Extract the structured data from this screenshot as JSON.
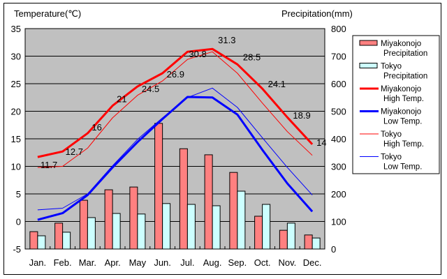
{
  "chart_data": {
    "type": "bar+line",
    "title": "",
    "ylabel_left": "Temperature(℃)",
    "ylabel_right": "Precipitation(mm)",
    "ylim_left": [
      -5,
      35
    ],
    "ylim_right": [
      0,
      800
    ],
    "yticks_left": [
      "35",
      "30",
      "25",
      "20",
      "15",
      "10",
      "5",
      "0",
      "-5"
    ],
    "yticks_right": [
      "800",
      "700",
      "600",
      "500",
      "400",
      "300",
      "200",
      "100",
      "0"
    ],
    "categories": [
      "Jan.",
      "Feb.",
      "Mar.",
      "Apr.",
      "May",
      "Jun.",
      "Jul.",
      "Aug.",
      "Sep.",
      "Oct.",
      "Nov.",
      "Dec."
    ],
    "grid": true,
    "legend_position": "right",
    "bar_series": [
      {
        "name": "Miyakonojo Precipitation",
        "legend_lines": [
          "Miyakonojo",
          "Precipitation"
        ],
        "color": "#ff8080",
        "values": [
          63,
          94,
          177,
          215,
          225,
          456,
          364,
          342,
          278,
          119,
          68,
          51
        ]
      },
      {
        "name": "Tokyo Precipitation",
        "legend_lines": [
          "Tokyo",
          "Precipitation"
        ],
        "color": "#ccffff",
        "values": [
          48,
          61,
          114,
          129,
          127,
          165,
          162,
          157,
          210,
          162,
          94,
          40
        ]
      }
    ],
    "line_series": [
      {
        "name": "Miyakonojo High Temp.",
        "legend_lines": [
          "Miyakonojo",
          "High Temp."
        ],
        "color": "#ff0000",
        "width": 3,
        "values": [
          11.7,
          12.7,
          16,
          21,
          24.5,
          26.9,
          30.8,
          31.3,
          28.5,
          24.1,
          18.9,
          14
        ],
        "labels": [
          "11.7",
          "12.7",
          "16",
          "21",
          "24.5",
          "26.9",
          "30.8",
          "31.3",
          "28.5",
          "24.1",
          "18.9",
          "14"
        ]
      },
      {
        "name": "Miyakonojo Low Temp.",
        "legend_lines": [
          "Miyakonojo",
          "Low Temp."
        ],
        "color": "#0000ff",
        "width": 3,
        "values": [
          0.3,
          1.5,
          4.8,
          9.8,
          14.4,
          18.6,
          22.6,
          22.5,
          19.4,
          13.0,
          6.9,
          1.8
        ]
      },
      {
        "name": "Tokyo High Temp.",
        "legend_lines": [
          "Tokyo",
          "High Temp."
        ],
        "color": "#ff0000",
        "width": 1,
        "values": [
          9.8,
          10.0,
          13.3,
          18.8,
          22.9,
          25.5,
          29.4,
          30.8,
          26.9,
          21.5,
          16.3,
          12.0
        ]
      },
      {
        "name": "Tokyo Low Temp.",
        "legend_lines": [
          "Tokyo",
          "Low Temp."
        ],
        "color": "#0000ff",
        "width": 1,
        "values": [
          2.1,
          2.4,
          5.0,
          10.1,
          14.9,
          18.8,
          22.5,
          24.2,
          20.7,
          15.2,
          9.8,
          4.8
        ]
      }
    ]
  },
  "colors": {
    "plot_bg": "#c0c0c0",
    "grid": "#000000"
  }
}
